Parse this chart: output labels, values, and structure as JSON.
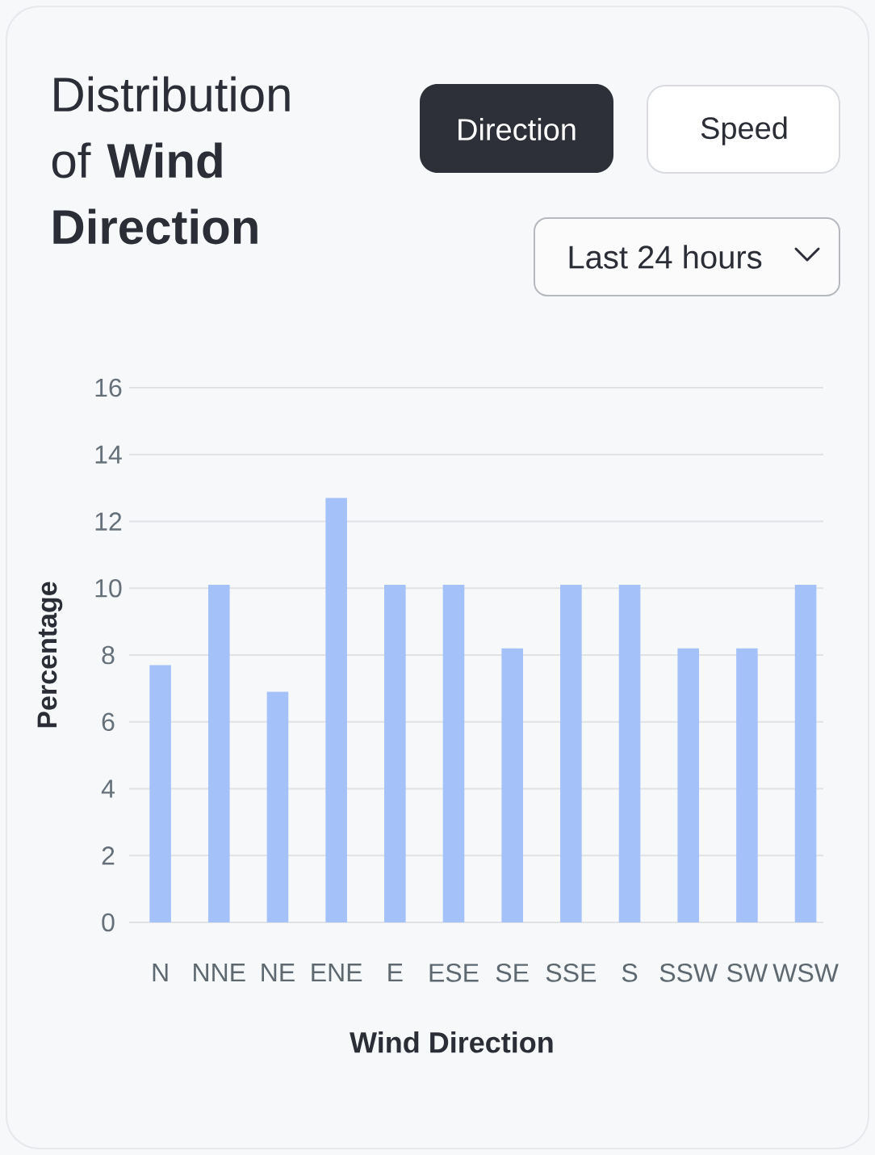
{
  "chart_data": {
    "type": "bar",
    "title": "Distribution of **Wind Direction**",
    "xlabel": "Wind Direction",
    "ylabel": "Percentage",
    "categories": [
      "N",
      "NNE",
      "NE",
      "ENE",
      "E",
      "ESE",
      "SE",
      "SSE",
      "S",
      "SSW",
      "SW",
      "WSW"
    ],
    "values": [
      7.7,
      10.1,
      6.9,
      12.7,
      10.1,
      10.1,
      8.2,
      10.1,
      10.1,
      8.2,
      8.2,
      10.1
    ],
    "color": "#a4c1fa",
    "ylim": [
      0,
      16
    ],
    "yticks": [
      0,
      2,
      4,
      6,
      8,
      10,
      12,
      14,
      16
    ],
    "grid": "y",
    "annotations": [
      "Direction",
      "Speed",
      "Last 24 hours"
    ]
  }
}
